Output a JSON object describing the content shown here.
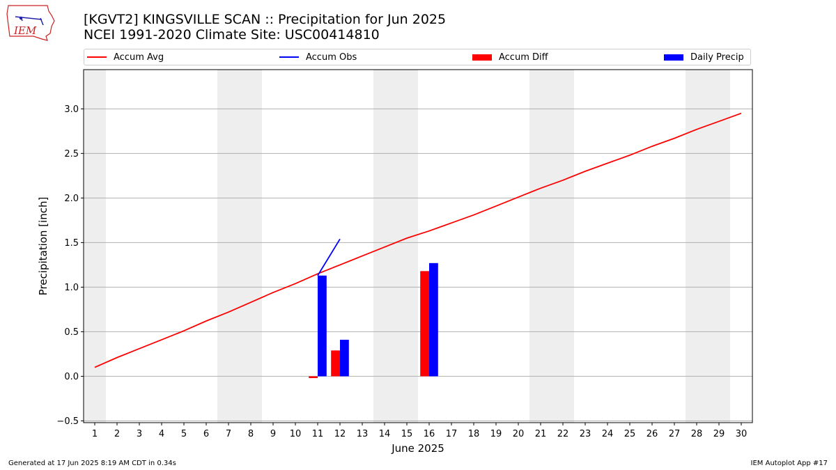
{
  "header": {
    "title": "[KGVT2] KINGSVILLE SCAN :: Precipitation for Jun 2025",
    "subtitle": "NCEI 1991-2020 Climate Site: USC00414810",
    "logo_text": "IEM"
  },
  "footer": {
    "left": "Generated at 17 Jun 2025 8:19 AM CDT in 0.34s",
    "right": "IEM Autoplot App #17"
  },
  "colors": {
    "avg": "#ff0000",
    "obs": "#0000ff",
    "diff": "#ff0000",
    "daily": "#0000ff",
    "weekend_band": "#eeeeee",
    "grid": "#b0b0b0"
  },
  "chart_data": {
    "type": "bar",
    "xlabel": "June 2025",
    "ylabel": "Precipitation [inch]",
    "xlim": [
      0.5,
      30.5
    ],
    "ylim": [
      -0.52,
      3.44
    ],
    "yticks": [
      "−0.5",
      "0.0",
      "0.5",
      "1.0",
      "1.5",
      "2.0",
      "2.5",
      "3.0"
    ],
    "ytick_values": [
      -0.5,
      0.0,
      0.5,
      1.0,
      1.5,
      2.0,
      2.5,
      3.0
    ],
    "days": [
      1,
      2,
      3,
      4,
      5,
      6,
      7,
      8,
      9,
      10,
      11,
      12,
      13,
      14,
      15,
      16,
      17,
      18,
      19,
      20,
      21,
      22,
      23,
      24,
      25,
      26,
      27,
      28,
      29,
      30
    ],
    "grid": "horizontal",
    "legend_position": "top",
    "weekend_bands": [
      [
        0.5,
        1.5
      ],
      [
        6.5,
        8.5
      ],
      [
        13.5,
        15.5
      ],
      [
        20.5,
        22.5
      ],
      [
        27.5,
        29.5
      ]
    ],
    "series": [
      {
        "name": "Accum Avg",
        "kind": "line",
        "x": [
          1,
          2,
          3,
          4,
          5,
          6,
          7,
          8,
          9,
          10,
          11,
          12,
          13,
          14,
          15,
          16,
          17,
          18,
          19,
          20,
          21,
          22,
          23,
          24,
          25,
          26,
          27,
          28,
          29,
          30
        ],
        "values": [
          0.1,
          0.21,
          0.31,
          0.41,
          0.51,
          0.62,
          0.72,
          0.83,
          0.94,
          1.04,
          1.15,
          1.25,
          1.35,
          1.45,
          1.55,
          1.63,
          1.72,
          1.81,
          1.91,
          2.01,
          2.11,
          2.2,
          2.3,
          2.39,
          2.48,
          2.58,
          2.67,
          2.77,
          2.86,
          2.95
        ]
      },
      {
        "name": "Accum Obs",
        "kind": "line",
        "x": [
          11,
          12
        ],
        "values": [
          1.13,
          1.54
        ]
      },
      {
        "name": "Accum Diff",
        "kind": "bar",
        "x": [
          11,
          12,
          16
        ],
        "values": [
          -0.02,
          0.29,
          1.18
        ]
      },
      {
        "name": "Daily Precip",
        "kind": "bar",
        "x": [
          11,
          12,
          16
        ],
        "values": [
          1.13,
          0.41,
          1.27
        ]
      }
    ]
  }
}
